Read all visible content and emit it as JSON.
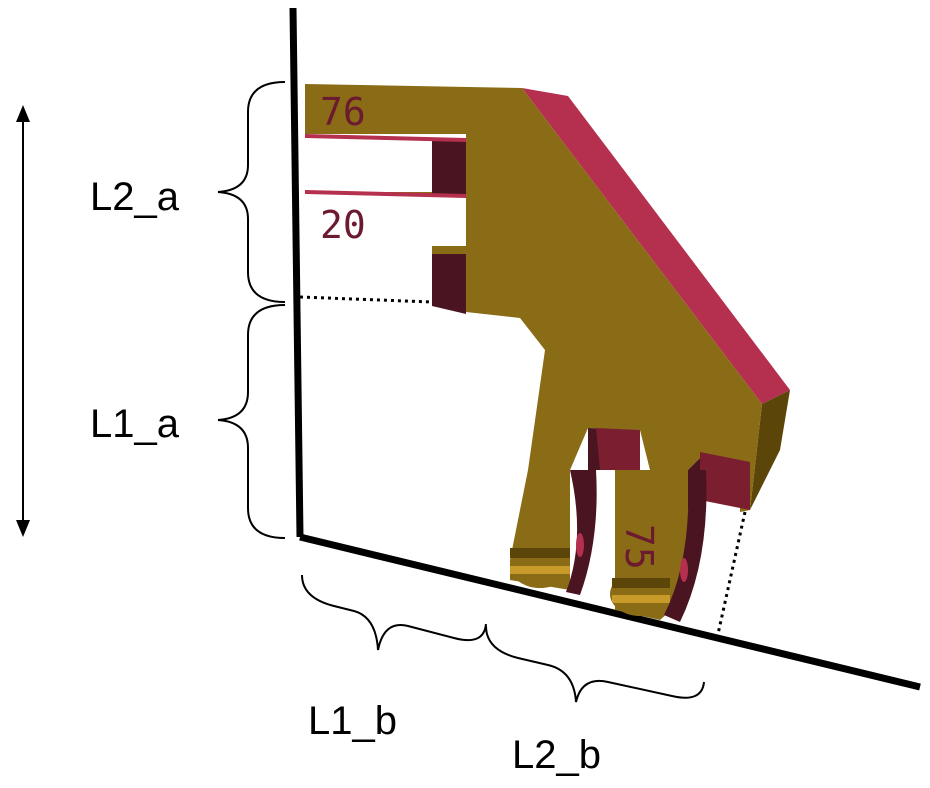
{
  "labels": {
    "l2_a": "L2_a",
    "l1_a": "L1_a",
    "l1_b": "L1_b",
    "l2_b": "L2_b"
  },
  "part_numbers": {
    "top_finger": "76",
    "middle_finger": "20",
    "lower_finger": "75"
  },
  "colors": {
    "body": "#8B6C16",
    "body_dark": "#5C4508",
    "body_edge": "#6E5510",
    "top_face": "#B5304E",
    "slot": "#4A1420",
    "slot_light": "#7A1E30",
    "text_on_part": "#6B1A30",
    "line": "#000000"
  },
  "icons": {
    "vertical_arrow": "double-headed-arrow-icon",
    "brace": "curly-brace-icon"
  }
}
